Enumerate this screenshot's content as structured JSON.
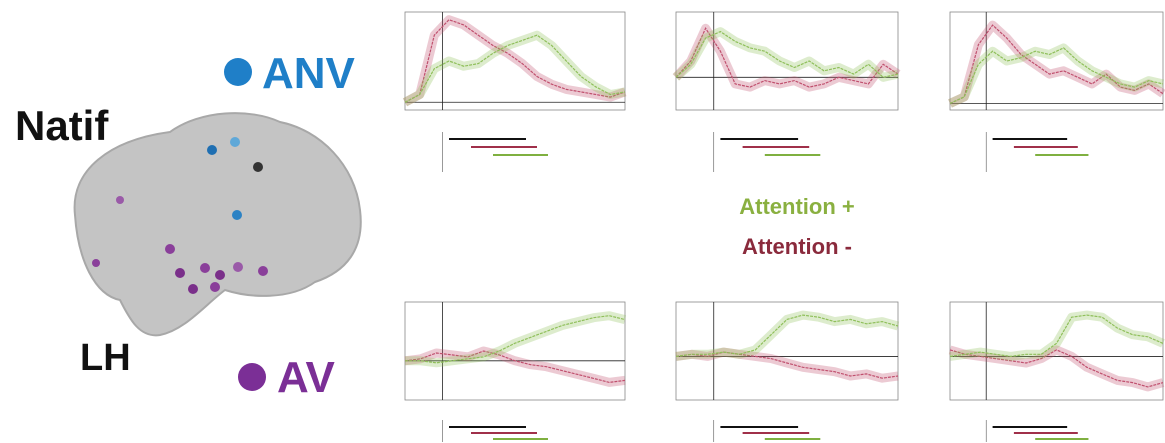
{
  "labels": {
    "natif": "Natif",
    "lh": "LH",
    "anv": "ANV",
    "av": "AV",
    "attention_plus": "Attention +",
    "attention_minus": "Attention -"
  },
  "chart_data": [
    {
      "type": "line",
      "ylim": [
        -0.3,
        3.5
      ],
      "series": [
        {
          "color": "#c0506e",
          "values": [
            0,
            0.3,
            2.6,
            3.2,
            3.0,
            2.6,
            2.2,
            1.9,
            1.5,
            1.0,
            0.7,
            0.5,
            0.4,
            0.3,
            0.2,
            0.4
          ]
        },
        {
          "color": "#8fbf5a",
          "values": [
            0,
            0.3,
            1.3,
            1.6,
            1.4,
            1.5,
            1.9,
            2.2,
            2.4,
            2.6,
            2.2,
            1.6,
            1.0,
            0.6,
            0.3,
            0.4
          ]
        }
      ]
    },
    {
      "type": "line",
      "ylim": [
        -1,
        2
      ],
      "series": [
        {
          "color": "#c0506e",
          "values": [
            0,
            0.5,
            1.5,
            0.8,
            -0.2,
            -0.3,
            -0.1,
            -0.2,
            -0.1,
            -0.3,
            -0.2,
            0,
            -0.1,
            -0.2,
            0.4,
            0.1
          ]
        },
        {
          "color": "#8fbf5a",
          "values": [
            0,
            0.4,
            1.2,
            1.4,
            1.1,
            0.9,
            0.8,
            0.5,
            0.3,
            0.5,
            0.2,
            0.3,
            0.1,
            0.4,
            0,
            0.1
          ]
        }
      ]
    },
    {
      "type": "line",
      "ylim": [
        -0.2,
        2.8
      ],
      "series": [
        {
          "color": "#c0506e",
          "values": [
            0,
            0.2,
            1.8,
            2.4,
            2.0,
            1.5,
            1.2,
            0.9,
            1.0,
            0.8,
            0.6,
            0.9,
            0.5,
            0.4,
            0.6,
            0.3
          ]
        },
        {
          "color": "#8fbf5a",
          "values": [
            0,
            0.2,
            1.2,
            1.6,
            1.3,
            1.4,
            1.6,
            1.5,
            1.7,
            1.3,
            1.0,
            0.8,
            0.6,
            0.5,
            0.7,
            0.6
          ]
        }
      ]
    },
    {
      "type": "line",
      "ylim": [
        -2,
        3
      ],
      "series": [
        {
          "color": "#c0506e",
          "values": [
            0,
            0.1,
            0.4,
            0.3,
            0.2,
            0.5,
            0.3,
            0,
            -0.2,
            -0.3,
            -0.5,
            -0.7,
            -0.9,
            -1.1,
            -1.0
          ]
        },
        {
          "color": "#8fbf5a",
          "values": [
            0,
            0,
            -0.1,
            0,
            0.1,
            0.2,
            0.5,
            0.9,
            1.2,
            1.5,
            1.8,
            2.0,
            2.2,
            2.3,
            2.1
          ]
        }
      ]
    },
    {
      "type": "line",
      "ylim": [
        -2,
        2.5
      ],
      "series": [
        {
          "color": "#c0506e",
          "values": [
            0,
            0.1,
            0,
            0.2,
            0.1,
            0,
            -0.1,
            -0.3,
            -0.5,
            -0.6,
            -0.7,
            -0.9,
            -0.8,
            -1.0,
            -0.9
          ]
        },
        {
          "color": "#8fbf5a",
          "values": [
            0,
            0.1,
            0.1,
            0.2,
            0.1,
            0.3,
            1.0,
            1.7,
            1.9,
            1.8,
            1.6,
            1.7,
            1.5,
            1.6,
            1.4
          ]
        }
      ]
    },
    {
      "type": "line",
      "ylim": [
        -2,
        2.5
      ],
      "series": [
        {
          "color": "#c0506e",
          "values": [
            0.3,
            0.1,
            0,
            -0.1,
            -0.2,
            -0.3,
            -0.1,
            0.3,
            0,
            -0.5,
            -0.8,
            -1.1,
            -1.2,
            -1.4,
            -1.2
          ]
        },
        {
          "color": "#8fbf5a",
          "values": [
            0,
            0.1,
            0.2,
            0.1,
            0,
            0.1,
            0.1,
            0.6,
            1.8,
            1.9,
            1.8,
            1.3,
            1.0,
            0.9,
            0.6
          ]
        }
      ]
    }
  ]
}
